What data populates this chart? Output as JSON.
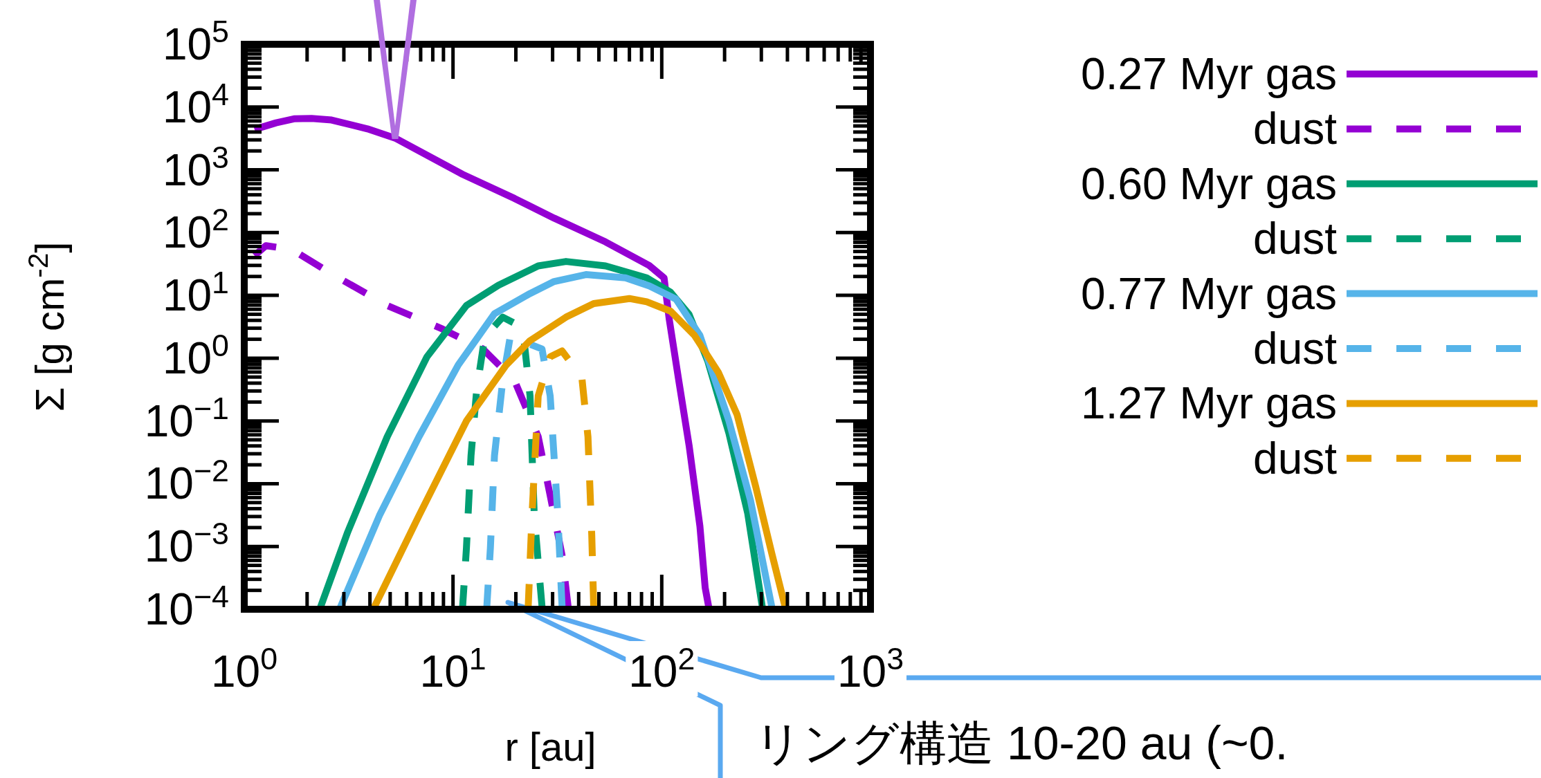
{
  "chart_data": {
    "type": "line",
    "xlabel": "r [au]",
    "ylabel": "Σ [g cm$^{-2}$]",
    "log": "xy",
    "legend": "right",
    "xlim": [
      1,
      1000
    ],
    "ylim": [
      0.0001,
      100000
    ],
    "xticks": [
      {
        "value": 1,
        "label": "10$^{0}$"
      },
      {
        "value": 10,
        "label": "10$^{1}$"
      },
      {
        "value": 100,
        "label": "10$^{2}$"
      },
      {
        "value": 1000,
        "label": "10$^{3}$"
      }
    ],
    "yticks": [
      {
        "value": 0.0001,
        "label": "10$^{−4}$"
      },
      {
        "value": 0.001,
        "label": "10$^{−3}$"
      },
      {
        "value": 0.01,
        "label": "10$^{−2}$"
      },
      {
        "value": 0.1,
        "label": "10$^{−1}$"
      },
      {
        "value": 1,
        "label": "10$^{0}$"
      },
      {
        "value": 10,
        "label": "10$^{1}$"
      },
      {
        "value": 100,
        "label": "10$^{2}$"
      },
      {
        "value": 1000,
        "label": "10$^{3}$"
      },
      {
        "value": 10000,
        "label": "10$^{4}$"
      },
      {
        "value": 100000,
        "label": "10$^{5}$"
      }
    ],
    "series": [
      {
        "name": "0.27 Myr gas",
        "color": "#9400d3",
        "line_style": "solid",
        "x": [
          1.12,
          1.42,
          1.73,
          2.1,
          2.62,
          3.89,
          5.28,
          11.1,
          19.7,
          30.5,
          53.8,
          87.1,
          102.6,
          108.6,
          120.5,
          135.5,
          152.4,
          161.4,
          168.7
        ],
        "values": [
          4400,
          5600,
          6500,
          6600,
          6200,
          4500,
          3200,
          850,
          350,
          170,
          71,
          30,
          19,
          4.2,
          0.45,
          0.039,
          0.0021,
          0.00022,
          0.0001
        ]
      },
      {
        "name": "dust",
        "color": "#9400d3",
        "line_style": "dashed",
        "x": [
          1.12,
          1.27,
          1.69,
          2.62,
          4.84,
          8.93,
          13.9,
          19.7,
          25.6,
          29.2,
          33.3,
          35.6
        ],
        "values": [
          43,
          62,
          54,
          22,
          6.9,
          2.9,
          1.4,
          0.44,
          0.056,
          0.0065,
          0.00072,
          0.00011
        ]
      },
      {
        "name": "0.60 Myr gas",
        "color": "#009e73",
        "line_style": "solid",
        "x": [
          2.3,
          3.13,
          4.84,
          7.5,
          11.6,
          16.5,
          25.6,
          34.8,
          53.8,
          84.7,
          110.2,
          135,
          166.3,
          210,
          258,
          303
        ],
        "values": [
          0.0001,
          0.0017,
          0.056,
          1.05,
          6.9,
          14.5,
          29.5,
          34.7,
          29.5,
          19,
          11.2,
          5,
          0.89,
          0.063,
          0.0034,
          0.00011
        ]
      },
      {
        "name": "dust",
        "color": "#009e73",
        "line_style": "dashed",
        "x": [
          11.1,
          11.6,
          12.2,
          13,
          14.2,
          17.3,
          19.7,
          21.9,
          23.4,
          24.5,
          26.7
        ],
        "values": [
          0.0001,
          0.00095,
          0.028,
          0.32,
          2.2,
          4.5,
          3.6,
          1.9,
          0.25,
          0.0031,
          0.00011
        ]
      },
      {
        "name": "0.77 Myr gas",
        "color": "#56b4e9",
        "line_style": "solid",
        "x": [
          2.86,
          4.44,
          6.87,
          10.6,
          15.8,
          23.4,
          30.5,
          43.3,
          67,
          87.3,
          117,
          152.4,
          210,
          266,
          336.5
        ],
        "values": [
          0.0001,
          0.0031,
          0.056,
          0.78,
          5.1,
          10.7,
          16.6,
          21.4,
          19,
          14.1,
          8.7,
          2.3,
          0.1,
          0.0055,
          0.00011
        ]
      },
      {
        "name": "dust",
        "color": "#56b4e9",
        "line_style": "dashed",
        "x": [
          14.5,
          15.1,
          15.8,
          17.3,
          18.8,
          26.7,
          29.2,
          31.8,
          33.3
        ],
        "values": [
          0.0001,
          0.00095,
          0.028,
          0.44,
          2.2,
          1.4,
          0.25,
          0.0031,
          0.00011
        ]
      },
      {
        "name": "1.27 Myr gas",
        "color": "#e69f00",
        "line_style": "solid",
        "x": [
          4.15,
          6.87,
          11.6,
          18,
          23.4,
          34.8,
          47.2,
          70,
          84.7,
          110.2,
          143.5,
          187,
          229.6,
          282,
          336.5,
          390
        ],
        "values": [
          0.0001,
          0.0031,
          0.1,
          0.78,
          1.9,
          4.5,
          7.4,
          8.9,
          7.9,
          5.6,
          2.3,
          0.59,
          0.126,
          0.0089,
          0.00078,
          0.00011
        ]
      },
      {
        "name": "dust",
        "color": "#e69f00",
        "line_style": "dashed",
        "x": [
          22.9,
          23.9,
          25.6,
          29.2,
          33.3,
          41.4,
          44.3,
          46.2,
          47.2
        ],
        "values": [
          0.0001,
          0.0031,
          0.25,
          1.05,
          1.3,
          0.5,
          0.056,
          0.0015,
          0.00011
        ]
      }
    ],
    "annotations": [
      "リング構造 10-20 au (~0."
    ]
  }
}
